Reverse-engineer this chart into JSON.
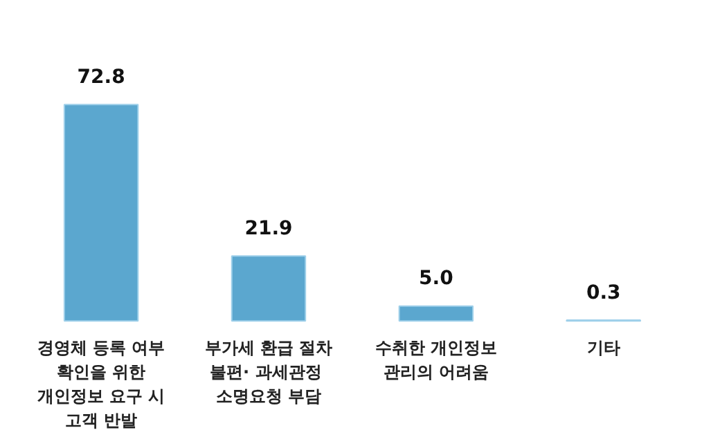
{
  "chart_data": {
    "type": "bar",
    "categories": [
      "경영체 등록 여부\n확인을 위한\n개인정보 요구 시\n고객 반발",
      "부가세 환급 절차\n불편·  과세관정\n소명요청 부담",
      "수취한 개인정보\n관리의 어려움",
      "기타"
    ],
    "values": [
      72.8,
      21.9,
      5.0,
      0.3
    ],
    "value_labels": [
      "72.8",
      "21.9",
      "5.0",
      "0.3"
    ],
    "color": "#5ba7cf"
  }
}
